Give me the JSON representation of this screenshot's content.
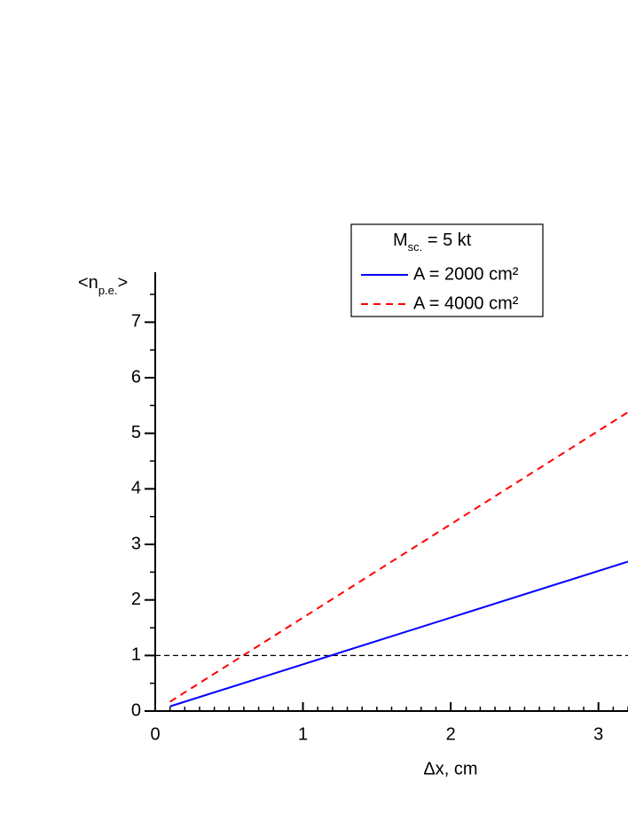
{
  "chart_data": {
    "type": "line",
    "x": [
      0.1,
      3.2
    ],
    "series": [
      {
        "name": "A = 2000 cm²",
        "color": "#0000ff",
        "dash": false,
        "values": [
          0.084,
          2.69
        ]
      },
      {
        "name": "A = 4000 cm²",
        "color": "#ff0000",
        "dash": true,
        "values": [
          0.168,
          5.38
        ]
      }
    ],
    "legend_title": [
      "M",
      "sc.",
      " = 5 kt"
    ],
    "y_label": [
      "<n",
      "p.e.",
      ">"
    ],
    "x_label": "Δx, cm",
    "xlim": [
      0,
      3.2
    ],
    "xticks": [
      0,
      1,
      2,
      3
    ],
    "ylim": [
      0,
      7.9
    ],
    "yticks": [
      0,
      1,
      2,
      3,
      4,
      5,
      6,
      7
    ],
    "x_minor_step": 0.1,
    "y_minor_step": 0.5,
    "hline": 1,
    "hline_color": "#000000"
  }
}
